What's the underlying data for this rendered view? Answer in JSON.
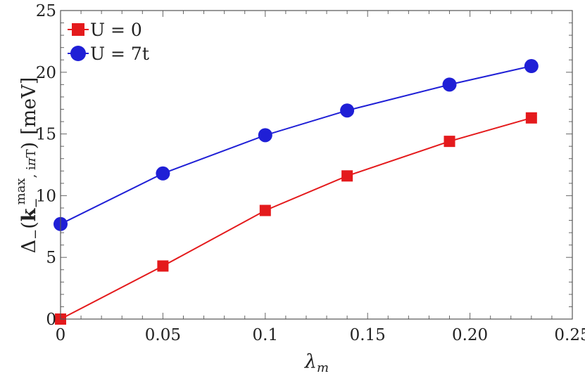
{
  "chart_data": {
    "type": "line",
    "xlabel": "λ_m",
    "ylabel": "Δ_−(k_−^max, iπT) [meV]",
    "xlim": [
      0,
      0.25
    ],
    "ylim": [
      0,
      25
    ],
    "xticks": [
      {
        "value": 0,
        "label": "0"
      },
      {
        "value": 0.05,
        "label": "0.05"
      },
      {
        "value": 0.1,
        "label": "0.1"
      },
      {
        "value": 0.15,
        "label": "0.15"
      },
      {
        "value": 0.2,
        "label": "0.20"
      },
      {
        "value": 0.25,
        "label": "0.25"
      }
    ],
    "yticks": [
      {
        "value": 0,
        "label": "0"
      },
      {
        "value": 5,
        "label": "5"
      },
      {
        "value": 10,
        "label": "10"
      },
      {
        "value": 15,
        "label": "15"
      },
      {
        "value": 20,
        "label": "20"
      },
      {
        "value": 25,
        "label": "25"
      }
    ],
    "grid": false,
    "legend_position": "top-left",
    "series": [
      {
        "name": "U = 0",
        "color": "#e41a1c",
        "marker": "square",
        "x": [
          0,
          0.05,
          0.1,
          0.14,
          0.19,
          0.23
        ],
        "y": [
          0.0,
          4.3,
          8.8,
          11.6,
          14.4,
          16.3
        ]
      },
      {
        "name": "U = 7t",
        "color": "#1f1fd6",
        "marker": "circle",
        "x": [
          0,
          0.05,
          0.1,
          0.14,
          0.19,
          0.23
        ],
        "y": [
          7.7,
          11.8,
          14.9,
          16.9,
          19.0,
          20.5
        ]
      }
    ]
  }
}
